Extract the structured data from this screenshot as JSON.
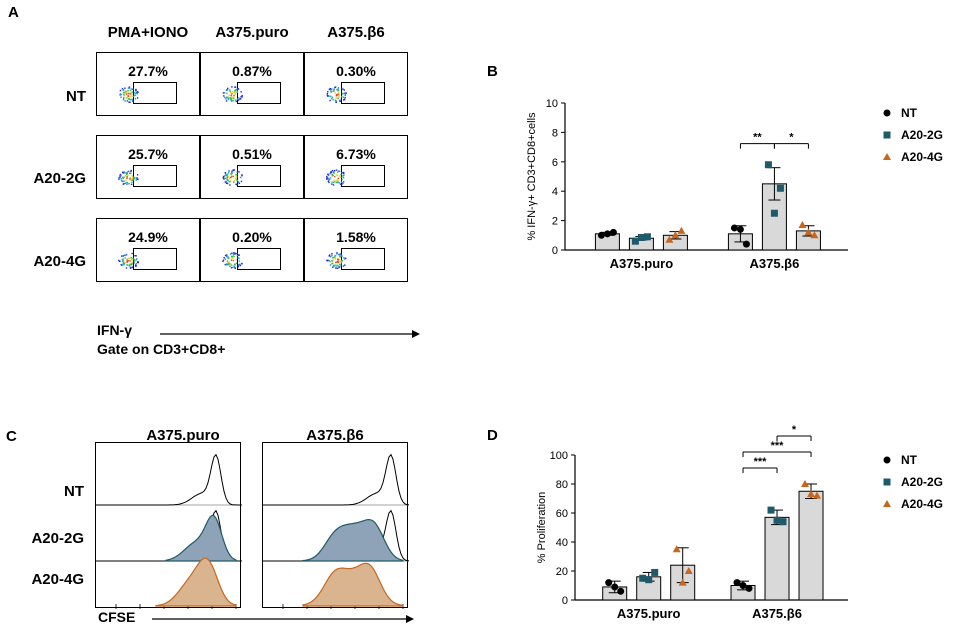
{
  "figure": {
    "panel_a": {
      "letter": "A",
      "columns": [
        "PMA+IONO",
        "A375.puro",
        "A375.β6"
      ],
      "rows": [
        {
          "label": "NT",
          "values": [
            "27.7%",
            "0.87%",
            "0.30%"
          ]
        },
        {
          "label": "A20-2G",
          "values": [
            "25.7%",
            "0.51%",
            "6.73%"
          ]
        },
        {
          "label": "A20-4G",
          "values": [
            "24.9%",
            "0.20%",
            "1.58%"
          ]
        }
      ],
      "x_axis_label": "IFN-γ",
      "gate_label": "Gate on CD3+CD8+"
    },
    "panel_b": {
      "letter": "B"
    },
    "panel_c": {
      "letter": "C",
      "columns": [
        "A375.puro",
        "A375.β6"
      ],
      "rows": [
        "NT",
        "A20-2G",
        "A20-4G"
      ],
      "x_axis_label": "CFSE"
    },
    "panel_d": {
      "letter": "D"
    },
    "colors": {
      "nt": "#000000",
      "a20_2g": "#1f5a6a",
      "a20_4g": "#c8661e",
      "bar": "#d9d9d9",
      "fill_2g": "#8fa3b8",
      "fill_4g": "#d9b48e"
    }
  },
  "chart_data": [
    {
      "id": "B",
      "type": "bar",
      "title": "",
      "ylabel": "% IFN-γ+ CD3+CD8+cells",
      "ylim": [
        0,
        10
      ],
      "yticks": [
        0,
        2,
        4,
        6,
        8,
        10
      ],
      "categories": [
        "A375.puro",
        "A375.β6"
      ],
      "series": [
        {
          "name": "NT",
          "values": [
            1.1,
            1.1
          ],
          "errors": [
            0.1,
            0.55
          ],
          "points": [
            [
              1.0,
              1.2,
              1.1
            ],
            [
              1.5,
              0.4,
              1.4
            ]
          ]
        },
        {
          "name": "A20-2G",
          "values": [
            0.8,
            4.5
          ],
          "errors": [
            0.12,
            1.1
          ],
          "points": [
            [
              0.6,
              0.9,
              0.85
            ],
            [
              5.8,
              4.2,
              2.5
            ]
          ]
        },
        {
          "name": "A20-4G",
          "values": [
            1.0,
            1.3
          ],
          "errors": [
            0.25,
            0.35
          ],
          "points": [
            [
              0.7,
              1.3,
              1.0
            ],
            [
              1.7,
              1.0,
              1.2
            ]
          ]
        }
      ],
      "significance": [
        {
          "label": "**",
          "between": [
            "NT",
            "A20-2G"
          ],
          "category": "A375.β6"
        },
        {
          "label": "*",
          "between": [
            "A20-2G",
            "A20-4G"
          ],
          "category": "A375.β6"
        }
      ],
      "legend": [
        "NT",
        "A20-2G",
        "A20-4G"
      ]
    },
    {
      "id": "D",
      "type": "bar",
      "title": "",
      "ylabel": "% Proliferation",
      "ylim": [
        0,
        100
      ],
      "yticks": [
        0,
        20,
        40,
        60,
        80,
        100
      ],
      "categories": [
        "A375.puro",
        "A375.β6"
      ],
      "series": [
        {
          "name": "NT",
          "values": [
            9,
            10
          ],
          "errors": [
            4,
            3
          ],
          "points": [
            [
              12,
              6,
              9
            ],
            [
              12,
              8,
              10
            ]
          ]
        },
        {
          "name": "A20-2G",
          "values": [
            16,
            57
          ],
          "errors": [
            3,
            5
          ],
          "points": [
            [
              15,
              19,
              14
            ],
            [
              62,
              54,
              55
            ]
          ]
        },
        {
          "name": "A20-4G",
          "values": [
            24,
            75
          ],
          "errors": [
            12,
            5
          ],
          "points": [
            [
              35,
              20,
              12
            ],
            [
              80,
              72,
              73
            ]
          ]
        }
      ],
      "significance": [
        {
          "label": "***",
          "between": [
            "NT",
            "A20-2G"
          ],
          "category": "A375.β6"
        },
        {
          "label": "***",
          "between": [
            "NT",
            "A20-4G"
          ],
          "category": "A375.β6"
        },
        {
          "label": "*",
          "between": [
            "A20-2G",
            "A20-4G"
          ],
          "category": "A375.β6"
        }
      ],
      "legend": [
        "NT",
        "A20-2G",
        "A20-4G"
      ]
    }
  ]
}
